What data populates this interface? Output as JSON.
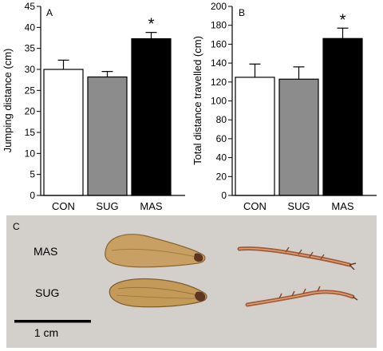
{
  "chart_data": [
    {
      "panel": "A",
      "type": "bar",
      "categories": [
        "CON",
        "SUG",
        "MAS"
      ],
      "values": [
        30.0,
        28.2,
        37.3
      ],
      "errors": [
        2.2,
        1.3,
        1.5
      ],
      "colors": [
        "#ffffff",
        "#8c8c8c",
        "#000000"
      ],
      "ylabel": "Jumping distance (cm)",
      "ylim": [
        0,
        45
      ],
      "yticks": [
        "0",
        "5",
        "10",
        "15",
        "20",
        "25",
        "30",
        "35",
        "40",
        "45"
      ],
      "yticks_values": [
        0,
        5,
        10,
        15,
        20,
        25,
        30,
        35,
        40,
        45
      ],
      "significance": [
        "",
        "",
        "*"
      ],
      "grid": false
    },
    {
      "panel": "B",
      "type": "bar",
      "categories": [
        "CON",
        "SUG",
        "MAS"
      ],
      "values": [
        125,
        123,
        166
      ],
      "errors": [
        14,
        13,
        11
      ],
      "colors": [
        "#ffffff",
        "#8c8c8c",
        "#000000"
      ],
      "ylabel": "Total distance travelled (cm)",
      "ylim": [
        0,
        200
      ],
      "yticks": [
        "0",
        "20",
        "40",
        "60",
        "80",
        "100",
        "120",
        "140",
        "160",
        "180",
        "200"
      ],
      "yticks_values": [
        0,
        20,
        40,
        60,
        80,
        100,
        120,
        140,
        160,
        180,
        200
      ],
      "significance": [
        "",
        "",
        "*"
      ],
      "grid": false
    }
  ],
  "photo": {
    "panel": "C",
    "labels": [
      "MAS",
      "SUG"
    ],
    "scale_label": "1 cm",
    "background": "#d3d0cc",
    "specimen_color": "#c49a55",
    "leg_color": "#a0522d"
  }
}
